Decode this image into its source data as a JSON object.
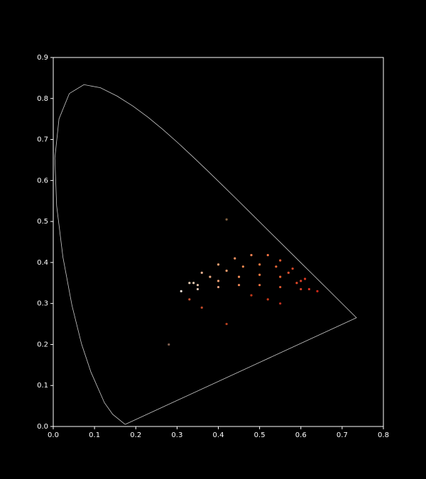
{
  "chart_data": {
    "type": "scatter",
    "xlim": [
      0,
      0.8
    ],
    "ylim": [
      0,
      0.9
    ],
    "xticks": [
      {
        "value": 0,
        "label": "0.0"
      },
      0.1,
      0.2,
      0.3,
      0.4,
      0.5,
      0.6,
      0.7,
      0.8
    ],
    "yticks": [
      {
        "value": 0,
        "label": "0.0"
      },
      0.1,
      0.2,
      0.3,
      0.4,
      0.5,
      0.6,
      0.7,
      0.8,
      0.9
    ],
    "series": [
      {
        "type": "line",
        "color": "#cccccc",
        "x": [
          0.1741,
          0.144,
          0.1241,
          0.0913,
          0.0687,
          0.0454,
          0.0235,
          0.0082,
          0.0039,
          0.0139,
          0.0389,
          0.0743,
          0.1142,
          0.1547,
          0.1929,
          0.2296,
          0.2658,
          0.3016,
          0.3373,
          0.3731,
          0.4087,
          0.4441,
          0.4788,
          0.5125,
          0.5448,
          0.5752,
          0.6029,
          0.627,
          0.6482,
          0.6658,
          0.6915,
          0.7347,
          0.1741
        ],
        "y": [
          0.005,
          0.0297,
          0.0578,
          0.1327,
          0.2007,
          0.295,
          0.4127,
          0.5384,
          0.6548,
          0.7502,
          0.812,
          0.8338,
          0.8262,
          0.8059,
          0.7816,
          0.7543,
          0.7243,
          0.6923,
          0.6589,
          0.6245,
          0.5896,
          0.5547,
          0.5202,
          0.4866,
          0.4544,
          0.4242,
          0.3965,
          0.3725,
          0.3514,
          0.334,
          0.3083,
          0.2653,
          0.005
        ]
      },
      {
        "type": "scatter",
        "x": [
          0.31,
          0.33,
          0.36,
          0.4,
          0.44,
          0.48,
          0.52,
          0.55,
          0.58,
          0.61,
          0.64,
          0.34,
          0.38,
          0.42,
          0.46,
          0.5,
          0.54,
          0.57,
          0.6,
          0.35,
          0.4,
          0.45,
          0.5,
          0.55,
          0.59,
          0.62,
          0.35,
          0.4,
          0.45,
          0.5,
          0.55,
          0.6,
          0.33,
          0.36,
          0.42,
          0.48,
          0.52,
          0.55,
          0.28,
          0.42
        ],
        "y": [
          0.33,
          0.35,
          0.375,
          0.395,
          0.41,
          0.418,
          0.418,
          0.405,
          0.385,
          0.36,
          0.33,
          0.35,
          0.365,
          0.38,
          0.39,
          0.395,
          0.39,
          0.375,
          0.355,
          0.345,
          0.355,
          0.365,
          0.37,
          0.365,
          0.35,
          0.335,
          0.335,
          0.34,
          0.345,
          0.345,
          0.34,
          0.335,
          0.31,
          0.29,
          0.25,
          0.32,
          0.31,
          0.3,
          0.2,
          0.505
        ],
        "colors": [
          "#e8e0d8",
          "#e0c8b0",
          "#e8b090",
          "#f0a070",
          "#f29060",
          "#f28050",
          "#f07040",
          "#e85a30",
          "#e04828",
          "#d83820",
          "#d02818",
          "#e0c8b0",
          "#eaa880",
          "#f09868",
          "#f08850",
          "#f07840",
          "#ec6838",
          "#e45030",
          "#dc4028",
          "#e0c0a8",
          "#ec9c70",
          "#f08c58",
          "#ee7840",
          "#e86030",
          "#e04828",
          "#d83020",
          "#d8c0b0",
          "#e8a080",
          "#ec8858",
          "#e87040",
          "#e05830",
          "#d84028",
          "#c85030",
          "#c04828",
          "#b84020",
          "#c03818",
          "#c83818",
          "#c03020",
          "#806050",
          "#806040"
        ]
      }
    ]
  }
}
